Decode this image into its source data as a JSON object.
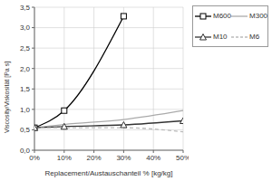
{
  "chart_data": {
    "type": "line",
    "x_label": "Replacement/Austauschanteil % [kg/kg]",
    "y_label": "Viscosity/Viskosität [Pa s]",
    "x": [
      0,
      10,
      30,
      50
    ],
    "xlim": [
      0,
      50
    ],
    "xticks": [
      {
        "value": 0,
        "label": "0%"
      },
      {
        "value": 10,
        "label": "10%"
      },
      {
        "value": 20,
        "label": "20%"
      },
      {
        "value": 30,
        "label": "30%"
      },
      {
        "value": 40,
        "label": "40%"
      },
      {
        "value": 50,
        "label": "50%"
      }
    ],
    "ylim": [
      0,
      3.5
    ],
    "yticks": [
      {
        "value": 0,
        "label": "0,0"
      },
      {
        "value": 0.5,
        "label": "0,5"
      },
      {
        "value": 1,
        "label": "1,0"
      },
      {
        "value": 1.5,
        "label": "1,5"
      },
      {
        "value": 2,
        "label": "2,0"
      },
      {
        "value": 2.5,
        "label": "2,5"
      },
      {
        "value": 3,
        "label": "3,0"
      },
      {
        "value": 3.5,
        "label": "3,5"
      }
    ],
    "grid": true,
    "legend": "upper right",
    "series": [
      {
        "name": "M600",
        "color": "#000000",
        "marker": "square",
        "line_style": "solid",
        "values": [
          0.55,
          0.97,
          3.28,
          null
        ]
      },
      {
        "name": "M300",
        "color": "#aaaaaa",
        "marker": "none",
        "line_style": "solid",
        "values": [
          0.55,
          0.63,
          0.75,
          0.97
        ]
      },
      {
        "name": "M10",
        "color": "#333333",
        "marker": "triangle",
        "line_style": "solid",
        "values": [
          0.55,
          0.58,
          0.62,
          0.72
        ]
      },
      {
        "name": "M6",
        "color": "#bbbbbb",
        "marker": "none",
        "line_style": "dashed",
        "values": [
          0.55,
          0.55,
          0.55,
          0.45
        ]
      }
    ]
  }
}
